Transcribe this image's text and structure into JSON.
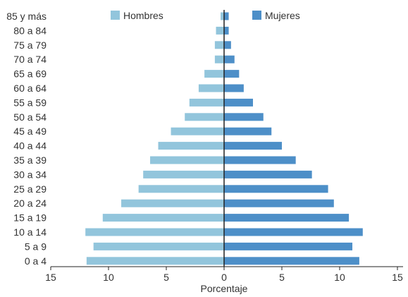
{
  "chart_data": {
    "type": "bar",
    "orientation": "horizontal-population-pyramid",
    "categories": [
      "0 a 4",
      "5 a 9",
      "10 a 14",
      "15 a 19",
      "20 a 24",
      "25 a 29",
      "30 a 34",
      "35 a 39",
      "40 a 44",
      "45 a 49",
      "50 a 54",
      "55 a 59",
      "60 a 64",
      "65 a 69",
      "70 a 74",
      "75 a 79",
      "80 a 84",
      "85 y más"
    ],
    "series": [
      {
        "name": "Hombres",
        "color": "#92c5dc",
        "values": [
          11.9,
          11.3,
          12.0,
          10.5,
          8.9,
          7.4,
          7.0,
          6.4,
          5.7,
          4.6,
          3.4,
          3.0,
          2.2,
          1.7,
          0.8,
          0.8,
          0.7,
          0.3
        ]
      },
      {
        "name": "Mujeres",
        "color": "#4d8fc8",
        "values": [
          11.7,
          11.1,
          12.0,
          10.8,
          9.5,
          9.0,
          7.6,
          6.2,
          5.0,
          4.1,
          3.4,
          2.5,
          1.7,
          1.3,
          0.9,
          0.6,
          0.4,
          0.4
        ]
      }
    ],
    "xlabel": "Porcentaje",
    "xlim": [
      -15,
      15
    ],
    "xticks": [
      {
        "value": -15,
        "label": "15"
      },
      {
        "value": -10,
        "label": "10"
      },
      {
        "value": -5,
        "label": "5"
      },
      {
        "value": 0,
        "label": "0"
      },
      {
        "value": 5,
        "label": "5"
      },
      {
        "value": 10,
        "label": "10"
      },
      {
        "value": 15,
        "label": "15"
      }
    ],
    "grid": false,
    "legend": "top-center"
  }
}
